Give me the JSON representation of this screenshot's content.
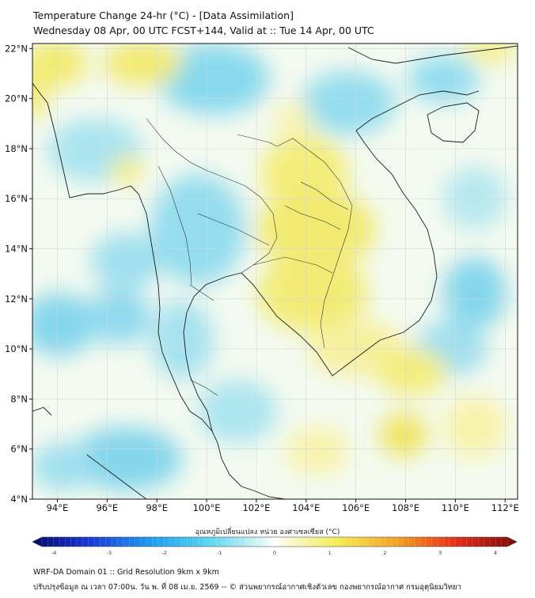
{
  "header": {
    "title": "Temperature Change 24-hr (°C) - [Data Assimilation]",
    "subtitle": "Wednesday 08 Apr, 00 UTC FCST+144, Valid at :: Tue 14 Apr, 00 UTC"
  },
  "map": {
    "lon_range": [
      93,
      112.5
    ],
    "lat_range": [
      4,
      22.2
    ],
    "lon_ticks": [
      "94°E",
      "96°E",
      "98°E",
      "100°E",
      "102°E",
      "104°E",
      "106°E",
      "108°E",
      "110°E",
      "112°E"
    ],
    "lat_ticks": [
      "4°N",
      "6°N",
      "8°N",
      "10°N",
      "12°N",
      "14°N",
      "16°N",
      "18°N",
      "20°N",
      "22°N"
    ],
    "grid": true,
    "field_colors": {
      "warm": "#f3ec70",
      "cool": "#7dd6ec",
      "neutral": "#f7fbee"
    }
  },
  "colorbar": {
    "title": "อุณหภูมิเปลี่ยนแปลง หน่วย องศาเซลเซียส (°C)",
    "tick_labels": [
      "-4",
      "-3",
      "-2",
      "-1",
      "0",
      "1",
      "2",
      "3",
      "4"
    ],
    "range": [
      -4,
      4
    ]
  },
  "footer": {
    "line1": "WRF-DA Domain 01 :: Grid Resolution 9km x 9km",
    "line2": "ปรับปรุงข้อมูล ณ เวลา 07:00น. วัน พ. ที่ 08 เม.ย. 2569 -- © ส่วนพยากรณ์อากาศเชิงตัวเลข กองพยากรณ์อากาศ กรมอุตุนิยมวิทยา"
  }
}
